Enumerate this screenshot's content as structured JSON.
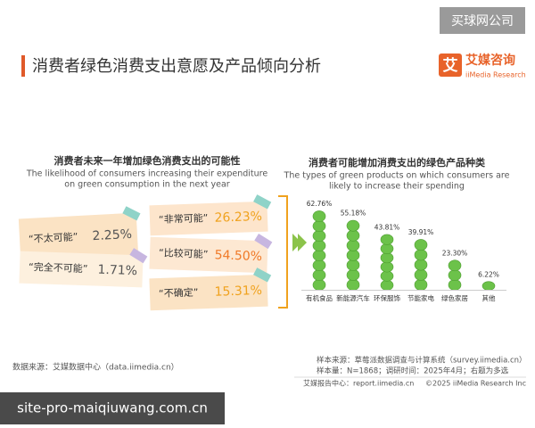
{
  "watermark_top": "买球网公司",
  "header": {
    "title": "消费者绿色消费支出意愿及产品倾向分析",
    "logo_mark": "艾",
    "logo_cn": "艾媒咨询",
    "logo_en": "iiMedia Research"
  },
  "chart_data": [
    {
      "type": "notes",
      "title": "消费者未来一年增加绿色消费支出的可能性",
      "subtitle": [
        "The likelihood of consumers increasing their expenditure",
        "on green consumption in the next year"
      ],
      "categories": [
        "“不太可能”",
        "“完全不可能”",
        "“非常可能”",
        "“比较可能”",
        "“不确定”"
      ],
      "values": [
        2.25,
        1.71,
        26.23,
        54.5,
        15.31
      ],
      "value_labels": [
        "2.25%",
        "1.71%",
        "26.23%",
        "54.50%",
        "15.31%"
      ],
      "colors": [
        "#555555",
        "#555555",
        "#f0a21e",
        "#f07a28",
        "#f0a21e"
      ]
    },
    {
      "type": "bar",
      "title": "消费者可能增加消费支出的绿色产品种类",
      "subtitle": [
        "The types of green products on which consumers are",
        "likely to increase their spending"
      ],
      "categories": [
        "有机食品",
        "新能源汽车",
        "环保服饰",
        "节能家电",
        "绿色家居",
        "其他"
      ],
      "values": [
        62.76,
        55.18,
        43.81,
        39.91,
        23.3,
        6.22
      ],
      "value_labels": [
        "62.76%",
        "55.18%",
        "43.81%",
        "39.91%",
        "23.30%",
        "6.22%"
      ],
      "color": "#6cc24a"
    }
  ],
  "source_left": "数据来源：艾媒数据中心（data.iimedia.cn）",
  "notes": [
    "样本来源：草莓派数据调查与计算系统（survey.iimedia.cn）",
    "样本量：N=1868；调研时间：2025年4月；右题为多选"
  ],
  "footer": {
    "left": "艾媒报告中心：report.iimedia.cn",
    "right": "©2025 iiMedia Research Inc"
  },
  "watermark_bottom": "site-pro-maiqiuwang.com.cn"
}
